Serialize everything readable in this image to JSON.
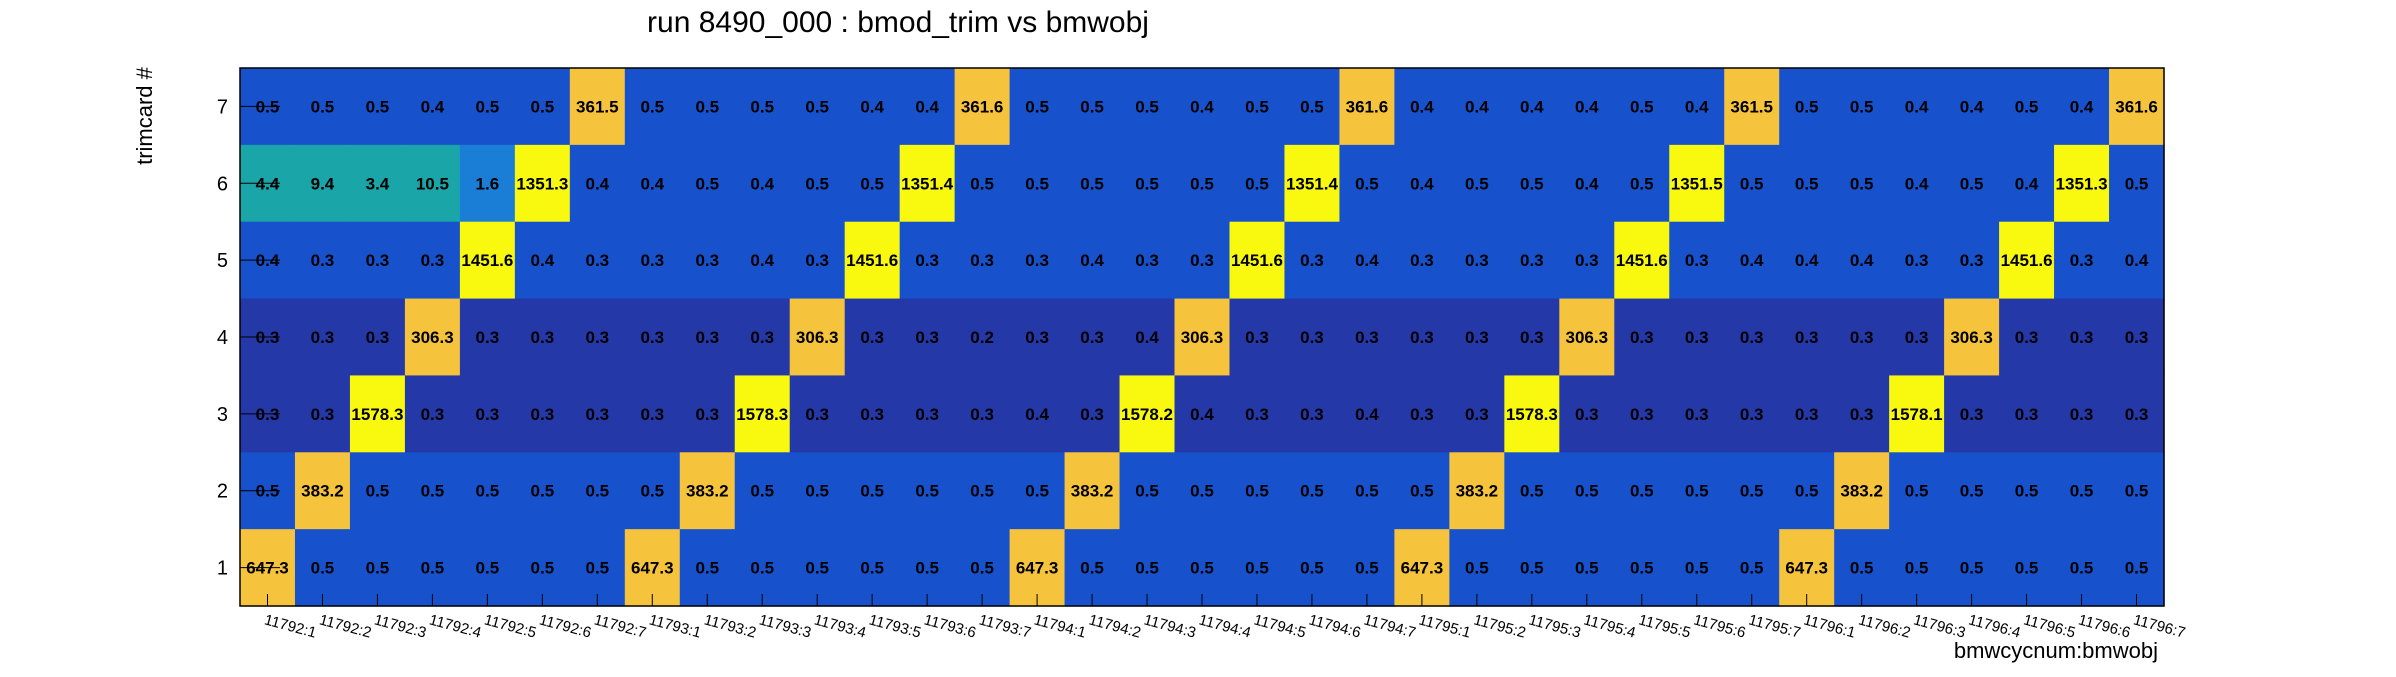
{
  "chart_data": {
    "type": "heatmap",
    "title": "run 8490_000 : bmod_trim vs bmwobj",
    "xlabel": "bmwcycnum:bmwobj",
    "ylabel": "trimcard #",
    "x_categories": [
      "11792:1",
      "11792:2",
      "11792:3",
      "11792:4",
      "11792:5",
      "11792:6",
      "11792:7",
      "11793:1",
      "11793:2",
      "11793:3",
      "11793:4",
      "11793:5",
      "11793:6",
      "11793:7",
      "11794:1",
      "11794:2",
      "11794:3",
      "11794:4",
      "11794:5",
      "11794:6",
      "11794:7",
      "11795:1",
      "11795:2",
      "11795:3",
      "11795:4",
      "11795:5",
      "11795:6",
      "11795:7",
      "11796:1",
      "11796:2",
      "11796:3",
      "11796:4",
      "11796:5",
      "11796:6",
      "11796:7"
    ],
    "y_categories": [
      "1",
      "2",
      "3",
      "4",
      "5",
      "6",
      "7"
    ],
    "rows": [
      {
        "y": "7",
        "values": [
          0.5,
          0.5,
          0.5,
          0.4,
          0.5,
          0.5,
          361.5,
          0.5,
          0.5,
          0.5,
          0.5,
          0.4,
          0.4,
          361.6,
          0.5,
          0.5,
          0.5,
          0.4,
          0.5,
          0.5,
          361.6,
          0.4,
          0.4,
          0.4,
          0.4,
          0.5,
          0.4,
          361.5,
          0.5,
          0.5,
          0.4,
          0.4,
          0.5,
          0.4,
          361.6
        ]
      },
      {
        "y": "6",
        "values": [
          4.4,
          9.4,
          3.4,
          10.5,
          1.6,
          1351.3,
          0.4,
          0.4,
          0.5,
          0.4,
          0.5,
          0.5,
          1351.4,
          0.5,
          0.5,
          0.5,
          0.5,
          0.5,
          0.5,
          1351.4,
          0.5,
          0.4,
          0.5,
          0.5,
          0.4,
          0.5,
          1351.5,
          0.5,
          0.5,
          0.5,
          0.4,
          0.5,
          0.4,
          1351.3,
          0.5
        ]
      },
      {
        "y": "5",
        "values": [
          0.4,
          0.3,
          0.3,
          0.3,
          1451.6,
          0.4,
          0.3,
          0.3,
          0.3,
          0.4,
          0.3,
          1451.6,
          0.3,
          0.3,
          0.3,
          0.4,
          0.3,
          0.3,
          1451.6,
          0.3,
          0.4,
          0.3,
          0.3,
          0.3,
          0.3,
          1451.6,
          0.3,
          0.4,
          0.4,
          0.4,
          0.3,
          0.3,
          1451.6,
          0.3,
          0.4
        ]
      },
      {
        "y": "4",
        "values": [
          0.3,
          0.3,
          0.3,
          306.3,
          0.3,
          0.3,
          0.3,
          0.3,
          0.3,
          0.3,
          306.3,
          0.3,
          0.3,
          0.2,
          0.3,
          0.3,
          0.4,
          306.3,
          0.3,
          0.3,
          0.3,
          0.3,
          0.3,
          0.3,
          306.3,
          0.3,
          0.3,
          0.3,
          0.3,
          0.3,
          0.3,
          306.3,
          0.3,
          0.3,
          0.3
        ]
      },
      {
        "y": "3",
        "values": [
          0.3,
          0.3,
          1578.3,
          0.3,
          0.3,
          0.3,
          0.3,
          0.3,
          0.3,
          1578.3,
          0.3,
          0.3,
          0.3,
          0.3,
          0.4,
          0.3,
          1578.2,
          0.4,
          0.3,
          0.3,
          0.4,
          0.3,
          0.3,
          1578.3,
          0.3,
          0.3,
          0.3,
          0.3,
          0.3,
          0.3,
          1578.1,
          0.3,
          0.3,
          0.3,
          0.3
        ]
      },
      {
        "y": "2",
        "values": [
          0.5,
          383.2,
          0.5,
          0.5,
          0.5,
          0.5,
          0.5,
          0.5,
          383.2,
          0.5,
          0.5,
          0.5,
          0.5,
          0.5,
          0.5,
          383.2,
          0.5,
          0.5,
          0.5,
          0.5,
          0.5,
          0.5,
          383.2,
          0.5,
          0.5,
          0.5,
          0.5,
          0.5,
          0.5,
          383.2,
          0.5,
          0.5,
          0.5,
          0.5,
          0.5
        ]
      },
      {
        "y": "1",
        "values": [
          647.3,
          0.5,
          0.5,
          0.5,
          0.5,
          0.5,
          0.5,
          647.3,
          0.5,
          0.5,
          0.5,
          0.5,
          0.5,
          0.5,
          647.3,
          0.5,
          0.5,
          0.5,
          0.5,
          0.5,
          0.5,
          647.3,
          0.5,
          0.5,
          0.5,
          0.5,
          0.5,
          0.5,
          647.3,
          0.5,
          0.5,
          0.5,
          0.5,
          0.5,
          0.5
        ]
      }
    ],
    "colors": {
      "high": "#f9f90f",
      "mid_high": "#f6c33c",
      "mid": "#1aa5a9",
      "low_mid": "#1b7ed6",
      "low": "#1752cc",
      "lowest": "#2538a8"
    },
    "grid": false,
    "legend": "none"
  }
}
